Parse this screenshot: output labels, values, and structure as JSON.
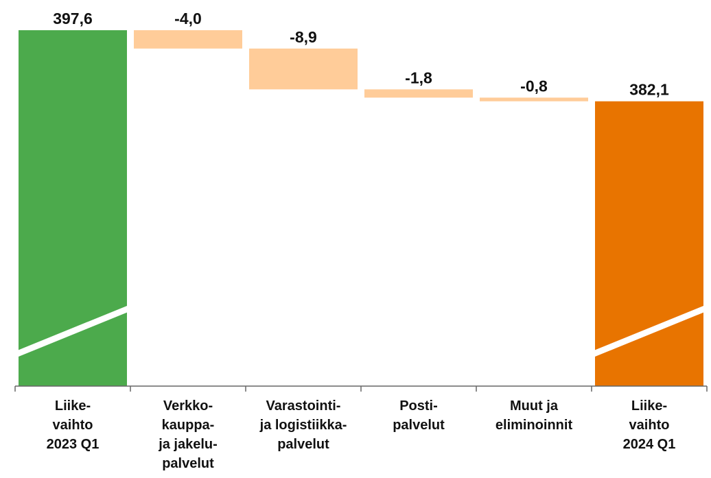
{
  "chart_data": {
    "type": "waterfall",
    "categories": [
      [
        "Liike-",
        "vaihto",
        "2023 Q1"
      ],
      [
        "Verkko-",
        "kauppa-",
        "ja jakelu-",
        "palvelut"
      ],
      [
        "Varastointi-",
        "ja logistiikka-",
        "palvelut"
      ],
      [
        "Posti-",
        "palvelut"
      ],
      [
        "Muut ja",
        "eliminoinnit"
      ],
      [
        "Liike-",
        "vaihto",
        "2024 Q1"
      ]
    ],
    "values": [
      397.6,
      -4.0,
      -8.9,
      -1.8,
      -0.8,
      382.1
    ],
    "value_labels": [
      "397,6",
      "-4,0",
      "-8,9",
      "-1,8",
      "-0,8",
      "382,1"
    ],
    "is_total": [
      true,
      false,
      false,
      false,
      false,
      true
    ],
    "colors": [
      "#4caa4c",
      "#ffcc99",
      "#ffcc99",
      "#ffcc99",
      "#ffcc99",
      "#e87400"
    ],
    "ylim": [
      320,
      400
    ],
    "axis_break": true
  }
}
